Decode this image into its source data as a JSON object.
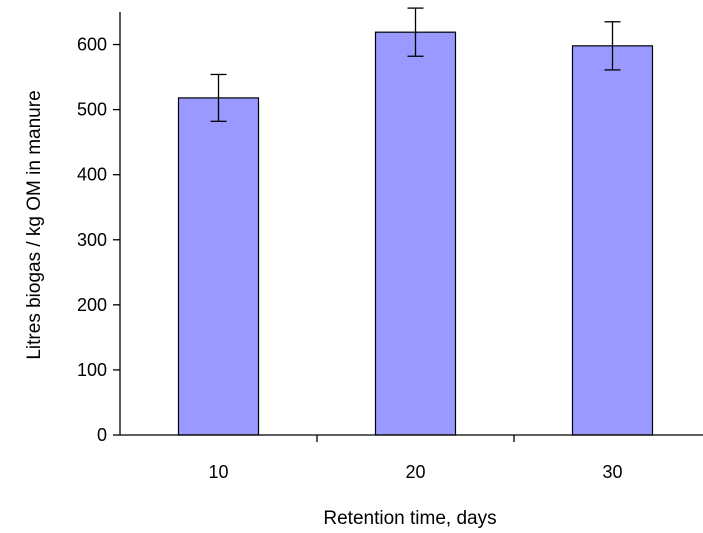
{
  "chart_data": {
    "type": "bar",
    "categories": [
      "10",
      "20",
      "30"
    ],
    "series": [
      {
        "values": [
          518,
          619,
          598
        ],
        "error": [
          36,
          37,
          37
        ]
      }
    ],
    "xlabel": "Retention time, days",
    "ylabel": "Litres biogas / kg OM in manure",
    "ylim": [
      0,
      650
    ],
    "yticks": [
      0,
      100,
      200,
      300,
      400,
      500,
      600
    ],
    "grid": false,
    "bar_color": "#9999ff",
    "bar_edge_color": "#000000"
  }
}
